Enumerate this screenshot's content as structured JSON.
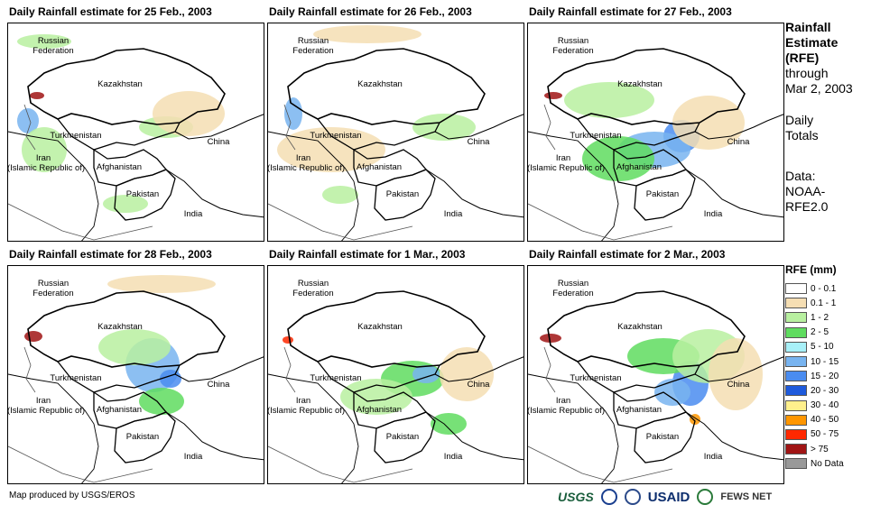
{
  "panels": [
    {
      "title": "Daily Rainfall estimate for 25 Feb., 2003"
    },
    {
      "title": "Daily Rainfall estimate for 26 Feb., 2003"
    },
    {
      "title": "Daily Rainfall estimate for 27 Feb., 2003"
    },
    {
      "title": "Daily Rainfall estimate for 28 Feb., 2003"
    },
    {
      "title": "Daily Rainfall estimate for 1 Mar., 2003"
    },
    {
      "title": "Daily Rainfall estimate for 2 Mar., 2003"
    }
  ],
  "country_labels": {
    "russia": "Russian\nFederation",
    "kazakhstan": "Kazakhstan",
    "turkmenistan": "Turkmenistan",
    "china": "China",
    "iran": "Iran\n(Islamic Republic of)",
    "afghanistan": "Afghanistan",
    "pakistan": "Pakistan",
    "india": "India"
  },
  "side_text": {
    "title_lines": [
      "Rainfall",
      "Estimate",
      "(RFE)"
    ],
    "through": "through",
    "date": "Mar 2, 2003",
    "totals_1": "Daily",
    "totals_2": "Totals",
    "data_1": "Data:",
    "data_2": "NOAA-",
    "data_3": "RFE2.0"
  },
  "legend": {
    "title": "RFE (mm)",
    "items": [
      {
        "label": "0 - 0.1",
        "color": "#ffffff"
      },
      {
        "label": "0.1 - 1",
        "color": "#f5deb3"
      },
      {
        "label": "1 - 2",
        "color": "#b8f0a0"
      },
      {
        "label": "2 - 5",
        "color": "#5fdc5f"
      },
      {
        "label": "5 - 10",
        "color": "#a8f0f8"
      },
      {
        "label": "10 - 15",
        "color": "#78b4f0"
      },
      {
        "label": "15 - 20",
        "color": "#4a8cf0"
      },
      {
        "label": "20 - 30",
        "color": "#1e5adc"
      },
      {
        "label": "30 - 40",
        "color": "#fff08c"
      },
      {
        "label": "40 - 50",
        "color": "#ff9600"
      },
      {
        "label": "50 - 75",
        "color": "#ff2800"
      },
      {
        "label": "> 75",
        "color": "#a01414"
      },
      {
        "label": "No Data",
        "color": "#999999"
      }
    ]
  },
  "credit": "Map produced by USGS/EROS",
  "logos": {
    "usgs": "USGS",
    "usaid": "USAID",
    "fews": "FEWS NET"
  }
}
